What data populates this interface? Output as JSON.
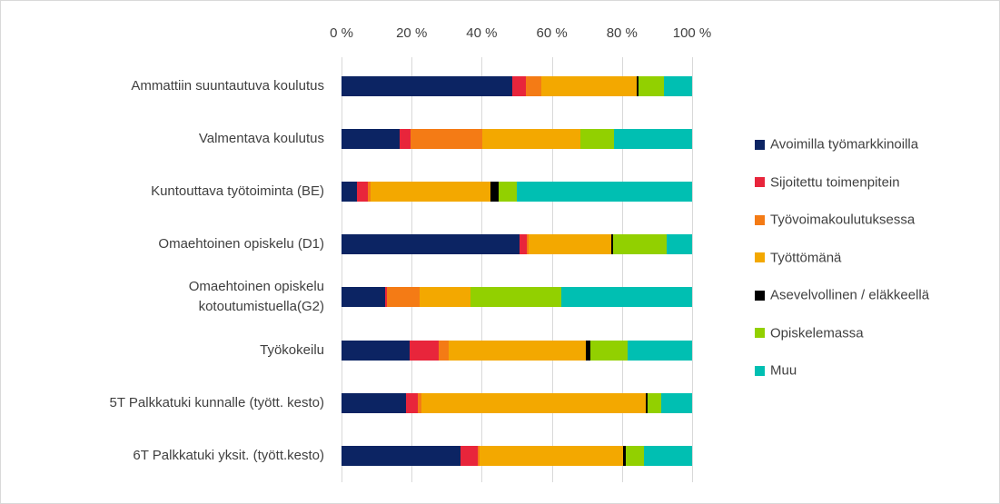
{
  "chart_data": {
    "type": "stacked-bar-horizontal",
    "categories": [
      "Ammattiin suuntautuva koulutus",
      "Valmentava koulutus",
      "Kuntouttava työtoiminta (BE)",
      "Omaehtoinen opiskelu (D1)",
      "Omaehtoinen opiskelu\nkotoutumistuella(G2)",
      "Työkokeilu",
      "5T Palkkatuki kunnalle (tyött. kesto)",
      "6T Palkkatuki yksit. (tyött.kesto)"
    ],
    "series": [
      {
        "name": "Avoimilla työmarkkinoilla",
        "color": "#0c2463",
        "values": [
          48.7,
          16.6,
          4.4,
          50.8,
          12.4,
          19.4,
          18.4,
          33.9
        ]
      },
      {
        "name": "Sijoitettu toimenpitein",
        "color": "#e8253b",
        "values": [
          3.9,
          3.1,
          3.1,
          2.1,
          0.5,
          8.3,
          3.4,
          4.9
        ]
      },
      {
        "name": "Työvoimakoulutuksessa",
        "color": "#f47b15",
        "values": [
          4.4,
          20.5,
          0.8,
          0.5,
          9.3,
          2.8,
          1.0,
          0.5
        ]
      },
      {
        "name": "Työttömänä",
        "color": "#f3a800",
        "values": [
          27.2,
          28.0,
          34.2,
          23.6,
          14.5,
          39.1,
          64.0,
          40.9
        ]
      },
      {
        "name": "Asevelvollinen / eläkkeellä",
        "color": "#000000",
        "values": [
          0.5,
          0,
          2.3,
          0.5,
          0,
          1.3,
          0.5,
          0.8
        ]
      },
      {
        "name": "Opiskelemassa",
        "color": "#92d000",
        "values": [
          7.3,
          9.6,
          5.2,
          15.3,
          25.9,
          10.6,
          3.9,
          5.2
        ]
      },
      {
        "name": "Muu",
        "color": "#00bfb2",
        "values": [
          8.0,
          22.2,
          50.0,
          7.2,
          37.4,
          18.5,
          8.8,
          13.8
        ]
      }
    ],
    "xlim": [
      0,
      100
    ],
    "xticks": [
      {
        "value": 0,
        "label": "0 %"
      },
      {
        "value": 20,
        "label": "20 %"
      },
      {
        "value": 40,
        "label": "40 %"
      },
      {
        "value": 60,
        "label": "60 %"
      },
      {
        "value": 80,
        "label": "80 %"
      },
      {
        "value": 100,
        "label": "100 %"
      }
    ],
    "grid": true,
    "legend": "right"
  }
}
